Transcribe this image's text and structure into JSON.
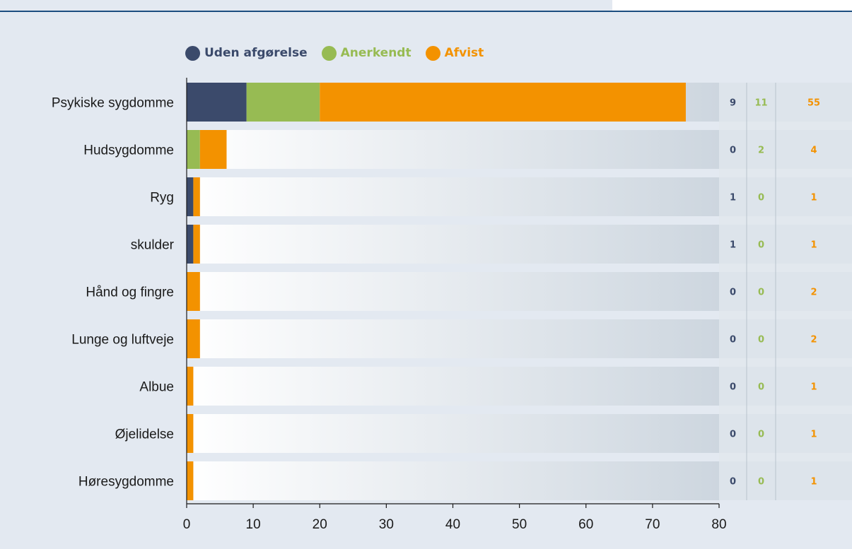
{
  "chart_data": {
    "type": "bar",
    "orientation": "horizontal",
    "stacked": true,
    "categories": [
      "Psykiske sygdomme",
      "Hudsygdomme",
      "Ryg",
      "skulder",
      "Hånd og fingre",
      "Lunge og luftveje",
      "Albue",
      "Øjelidelse",
      "Høresygdomme"
    ],
    "series": [
      {
        "name": "Uden afgørelse",
        "color": "#3b4a6b",
        "values": [
          9,
          0,
          1,
          1,
          0,
          0,
          0,
          0,
          0
        ]
      },
      {
        "name": "Anerkendt",
        "color": "#97bb53",
        "values": [
          11,
          2,
          0,
          0,
          0,
          0,
          0,
          0,
          0
        ]
      },
      {
        "name": "Afvist",
        "color": "#f39200",
        "values": [
          55,
          4,
          1,
          1,
          2,
          2,
          1,
          1,
          1
        ]
      }
    ],
    "xlim": [
      0,
      80
    ],
    "xticks": [
      0,
      10,
      20,
      30,
      40,
      50,
      60,
      70,
      80
    ],
    "legend_position": "top-left",
    "value_columns": "right",
    "grid": false
  }
}
